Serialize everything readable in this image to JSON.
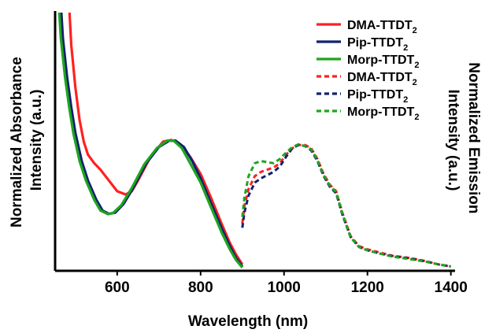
{
  "chart_data": {
    "type": "line",
    "xlabel": "Wavelength (nm)",
    "ylabel_left": [
      "Normalized Absorbance",
      "Intensity (a.u.)"
    ],
    "ylabel_right": [
      "Normalized Emission",
      "Intensity (a.u.)"
    ],
    "xlim": [
      455,
      1410
    ],
    "ylim": [
      0,
      1.2
    ],
    "xticks": [
      600,
      800,
      1000,
      1200,
      1400
    ],
    "xtick_labels": [
      "600",
      "800",
      "1000",
      "1200",
      "1400"
    ],
    "grid": false,
    "legend_position": "top-right",
    "series": [
      {
        "base": "DMA-TTDT",
        "sub": "2",
        "style": "solid",
        "color": "#ff2020",
        "kind": "absorbance",
        "points": [
          [
            483,
            1.3
          ],
          [
            490,
            1.05
          ],
          [
            500,
            0.85
          ],
          [
            510,
            0.7
          ],
          [
            520,
            0.6
          ],
          [
            530,
            0.54
          ],
          [
            545,
            0.5
          ],
          [
            560,
            0.47
          ],
          [
            580,
            0.42
          ],
          [
            600,
            0.37
          ],
          [
            620,
            0.355
          ],
          [
            635,
            0.37
          ],
          [
            650,
            0.42
          ],
          [
            680,
            0.53
          ],
          [
            710,
            0.6
          ],
          [
            730,
            0.608
          ],
          [
            750,
            0.59
          ],
          [
            775,
            0.53
          ],
          [
            800,
            0.45
          ],
          [
            825,
            0.34
          ],
          [
            850,
            0.22
          ],
          [
            870,
            0.13
          ],
          [
            885,
            0.075
          ],
          [
            900,
            0.03
          ]
        ]
      },
      {
        "base": "Pip-TTDT",
        "sub": "2",
        "style": "solid",
        "color": "#12206e",
        "kind": "absorbance",
        "points": [
          [
            463,
            1.3
          ],
          [
            470,
            1.08
          ],
          [
            480,
            0.9
          ],
          [
            490,
            0.76
          ],
          [
            500,
            0.64
          ],
          [
            515,
            0.51
          ],
          [
            530,
            0.42
          ],
          [
            550,
            0.33
          ],
          [
            565,
            0.28
          ],
          [
            580,
            0.265
          ],
          [
            595,
            0.27
          ],
          [
            615,
            0.31
          ],
          [
            640,
            0.39
          ],
          [
            670,
            0.5
          ],
          [
            700,
            0.575
          ],
          [
            725,
            0.605
          ],
          [
            740,
            0.605
          ],
          [
            760,
            0.575
          ],
          [
            780,
            0.51
          ],
          [
            800,
            0.43
          ],
          [
            825,
            0.315
          ],
          [
            850,
            0.2
          ],
          [
            870,
            0.115
          ],
          [
            885,
            0.06
          ],
          [
            900,
            0.02
          ]
        ]
      },
      {
        "base": "Morp-TTDT",
        "sub": "2",
        "style": "solid",
        "color": "#1ea51e",
        "kind": "absorbance",
        "points": [
          [
            458,
            1.3
          ],
          [
            465,
            1.08
          ],
          [
            475,
            0.9
          ],
          [
            485,
            0.76
          ],
          [
            495,
            0.64
          ],
          [
            510,
            0.51
          ],
          [
            525,
            0.42
          ],
          [
            545,
            0.33
          ],
          [
            560,
            0.28
          ],
          [
            578,
            0.263
          ],
          [
            590,
            0.268
          ],
          [
            610,
            0.305
          ],
          [
            635,
            0.385
          ],
          [
            665,
            0.495
          ],
          [
            695,
            0.57
          ],
          [
            720,
            0.605
          ],
          [
            735,
            0.605
          ],
          [
            755,
            0.57
          ],
          [
            775,
            0.5
          ],
          [
            800,
            0.41
          ],
          [
            825,
            0.295
          ],
          [
            850,
            0.18
          ],
          [
            870,
            0.1
          ],
          [
            885,
            0.05
          ],
          [
            900,
            0.015
          ]
        ]
      },
      {
        "base": "DMA-TTDT",
        "sub": "2",
        "style": "dashed",
        "color": "#ff2020",
        "kind": "emission",
        "points": [
          [
            900,
            0.22
          ],
          [
            905,
            0.3
          ],
          [
            915,
            0.38
          ],
          [
            930,
            0.44
          ],
          [
            945,
            0.46
          ],
          [
            960,
            0.47
          ],
          [
            975,
            0.48
          ],
          [
            990,
            0.5
          ],
          [
            1005,
            0.54
          ],
          [
            1020,
            0.57
          ],
          [
            1035,
            0.585
          ],
          [
            1050,
            0.585
          ],
          [
            1065,
            0.57
          ],
          [
            1080,
            0.52
          ],
          [
            1095,
            0.45
          ],
          [
            1110,
            0.4
          ],
          [
            1125,
            0.37
          ],
          [
            1140,
            0.27
          ],
          [
            1160,
            0.16
          ],
          [
            1180,
            0.115
          ],
          [
            1200,
            0.1
          ],
          [
            1230,
            0.085
          ],
          [
            1260,
            0.07
          ],
          [
            1300,
            0.06
          ],
          [
            1340,
            0.045
          ],
          [
            1370,
            0.03
          ],
          [
            1400,
            0.02
          ]
        ]
      },
      {
        "base": "Pip-TTDT",
        "sub": "2",
        "style": "dashed",
        "color": "#12206e",
        "kind": "emission",
        "points": [
          [
            900,
            0.2
          ],
          [
            905,
            0.27
          ],
          [
            915,
            0.35
          ],
          [
            930,
            0.41
          ],
          [
            945,
            0.43
          ],
          [
            960,
            0.445
          ],
          [
            975,
            0.46
          ],
          [
            990,
            0.485
          ],
          [
            1005,
            0.53
          ],
          [
            1020,
            0.57
          ],
          [
            1035,
            0.585
          ],
          [
            1050,
            0.58
          ],
          [
            1065,
            0.56
          ],
          [
            1080,
            0.51
          ],
          [
            1095,
            0.44
          ],
          [
            1110,
            0.39
          ],
          [
            1125,
            0.36
          ],
          [
            1140,
            0.26
          ],
          [
            1160,
            0.155
          ],
          [
            1180,
            0.11
          ],
          [
            1200,
            0.095
          ],
          [
            1230,
            0.08
          ],
          [
            1260,
            0.068
          ],
          [
            1300,
            0.058
          ],
          [
            1340,
            0.043
          ],
          [
            1370,
            0.03
          ],
          [
            1400,
            0.02
          ]
        ]
      },
      {
        "base": "Morp-TTDT",
        "sub": "2",
        "style": "dashed",
        "color": "#1ea51e",
        "kind": "emission",
        "points": [
          [
            900,
            0.25
          ],
          [
            905,
            0.34
          ],
          [
            915,
            0.44
          ],
          [
            930,
            0.5
          ],
          [
            945,
            0.51
          ],
          [
            960,
            0.505
          ],
          [
            975,
            0.5
          ],
          [
            990,
            0.52
          ],
          [
            1005,
            0.55
          ],
          [
            1020,
            0.575
          ],
          [
            1035,
            0.588
          ],
          [
            1050,
            0.58
          ],
          [
            1065,
            0.565
          ],
          [
            1080,
            0.515
          ],
          [
            1095,
            0.445
          ],
          [
            1110,
            0.395
          ],
          [
            1125,
            0.365
          ],
          [
            1140,
            0.265
          ],
          [
            1160,
            0.155
          ],
          [
            1180,
            0.11
          ],
          [
            1200,
            0.095
          ],
          [
            1230,
            0.08
          ],
          [
            1260,
            0.066
          ],
          [
            1300,
            0.055
          ],
          [
            1340,
            0.042
          ],
          [
            1370,
            0.03
          ],
          [
            1400,
            0.02
          ]
        ]
      }
    ]
  }
}
